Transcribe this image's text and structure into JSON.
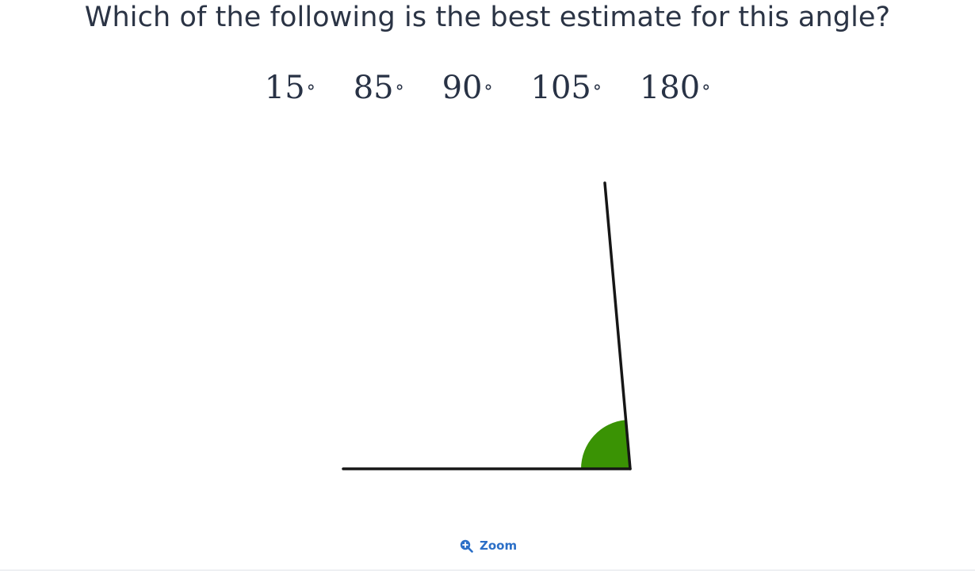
{
  "question": {
    "text": "Which of the following is the best estimate for this angle?"
  },
  "options": [
    {
      "value": "15",
      "unit": "°"
    },
    {
      "value": "85",
      "unit": "°"
    },
    {
      "value": "90",
      "unit": "°"
    },
    {
      "value": "105",
      "unit": "°"
    },
    {
      "value": "180",
      "unit": "°"
    }
  ],
  "figure": {
    "angle_fill_color": "#3a9304",
    "line_color": "#161616"
  },
  "zoom": {
    "label": "Zoom",
    "icon": "zoom-in-icon"
  }
}
